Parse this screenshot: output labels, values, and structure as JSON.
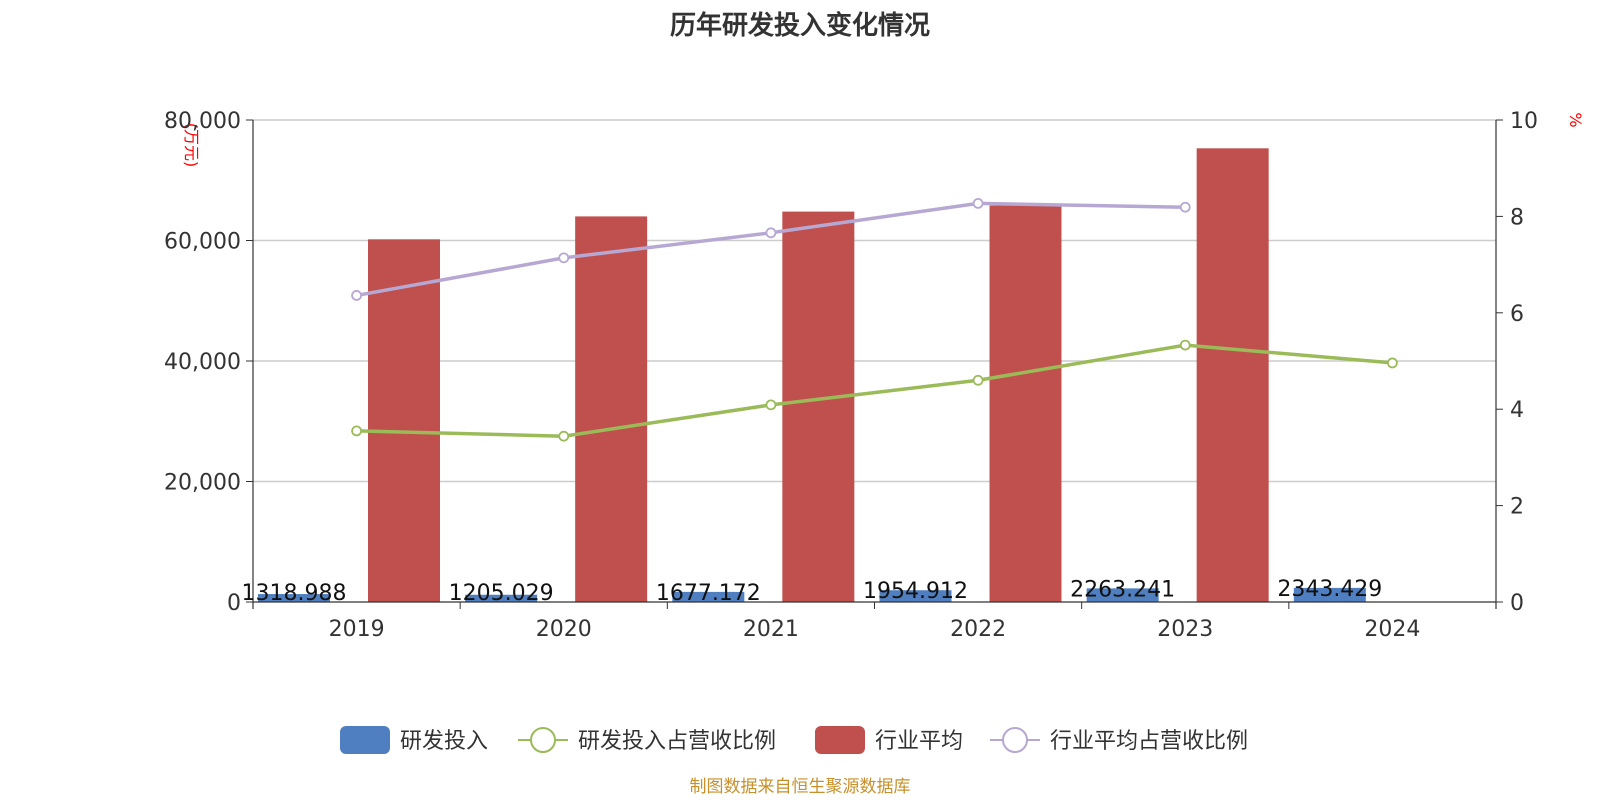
{
  "chart_data": {
    "type": "bar",
    "title": "历年研发投入变化情况",
    "y_left_unit": "(万元)",
    "y_right_unit": "%",
    "categories": [
      "2019",
      "2020",
      "2021",
      "2022",
      "2023",
      "2024"
    ],
    "ylim_left": [
      0,
      80000
    ],
    "ylim_right": [
      0,
      10
    ],
    "yticks_left": [
      "0",
      "20,000",
      "40,000",
      "60,000",
      "80,000"
    ],
    "yticks_right": [
      "0",
      "2",
      "4",
      "6",
      "8",
      "10"
    ],
    "grid": true,
    "legend_position": "bottom",
    "series": [
      {
        "name": "研发投入",
        "type": "bar",
        "axis": "left",
        "color": "#4f7fc0",
        "values": [
          1318.988,
          1205.029,
          1677.172,
          1954.912,
          2263.241,
          2343.429
        ],
        "labels": [
          "1318.988",
          "1205.029",
          "1677.172",
          "1954.912",
          "2263.241",
          "2343.429"
        ]
      },
      {
        "name": "研发投入占营收比例",
        "type": "line",
        "axis": "right",
        "color": "#9bbb59",
        "values": [
          3.55,
          3.44,
          4.09,
          4.6,
          5.33,
          4.96
        ]
      },
      {
        "name": "行业平均",
        "type": "bar",
        "axis": "left",
        "color": "#c0504d",
        "values": [
          60200,
          64000,
          64800,
          65800,
          75300,
          null
        ]
      },
      {
        "name": "行业平均占营收比例",
        "type": "line",
        "axis": "right",
        "color": "#b7a7d3",
        "values": [
          6.36,
          7.14,
          7.66,
          8.27,
          8.19,
          null
        ]
      }
    ],
    "source": "制图数据来自恒生聚源数据库"
  }
}
